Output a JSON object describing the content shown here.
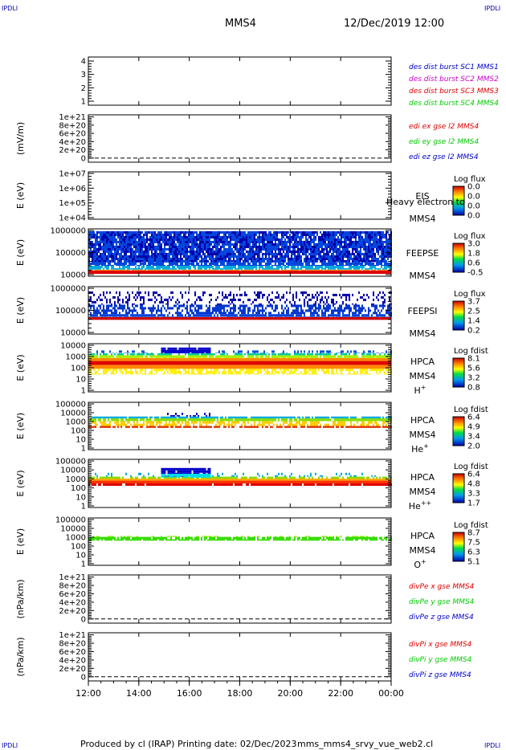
{
  "header": {
    "corner_label": "IPDLI",
    "spacecraft": "MMS4",
    "datetime": "12/Dec/2019 12:00"
  },
  "footer": {
    "produced_by": "Produced by cl (IRAP)",
    "printing_date": "Printing date: 02/Dec/2023",
    "script_name": "mms_mms4_srvy_vue_web2.cl"
  },
  "time_axis": {
    "ticks": [
      "12:00",
      "14:00",
      "16:00",
      "18:00",
      "20:00",
      "22:00",
      "00:00"
    ]
  },
  "colors": {
    "blue": "#0000cc",
    "magenta": "#cc00cc",
    "red": "#dd0000",
    "green": "#00cc00"
  },
  "chart_data": [
    {
      "type": "line",
      "panel": "des-dist-burst",
      "yticks": [
        "1",
        "2",
        "3",
        "4"
      ],
      "ylim": [
        0.7,
        4.3
      ],
      "ylabel": "",
      "legend": [
        {
          "text": "des dist burst SC1 MMS1",
          "color": "#0000cc"
        },
        {
          "text": "des dist burst SC2 MMS2",
          "color": "#cc00cc"
        },
        {
          "text": "des dist burst SC3 MMS3",
          "color": "#dd0000"
        },
        {
          "text": "des dist burst SC4 MMS4",
          "color": "#00cc00"
        }
      ],
      "series": []
    },
    {
      "type": "line",
      "panel": "edi-e-gse",
      "ylabel": "(mV/m)",
      "yticks": [
        "0",
        "2e+20",
        "4e+20",
        "6e+20",
        "8e+20",
        "1e+21"
      ],
      "ylim": [
        -1e+20,
        1.05e+21
      ],
      "zero_line": true,
      "legend": [
        {
          "text": "edi ex gse l2 MMS4",
          "color": "#dd0000"
        },
        {
          "text": "edi ey gse l2 MMS4",
          "color": "#00cc00"
        },
        {
          "text": "edi ez gse l2 MMS4",
          "color": "#0000cc"
        }
      ],
      "series": []
    },
    {
      "type": "heatmap",
      "panel": "eis",
      "ylabel": "E (eV)",
      "yticks": [
        "1e+04",
        "1e+05",
        "1e+06",
        "1e+07"
      ],
      "labels": [
        "EIS",
        "MMS4"
      ],
      "overlap_text": "Heavy electron to",
      "colorbar": {
        "title": "Log flux",
        "ticks": [
          "0.0",
          "0.0",
          "0.0",
          "0.0"
        ]
      },
      "bands": []
    },
    {
      "type": "heatmap",
      "panel": "feeps-e",
      "ylabel": "E (eV)",
      "yticks": [
        "10000",
        "100000",
        "1000000"
      ],
      "labels": [
        "FEEPSE",
        "MMS4"
      ],
      "colorbar": {
        "title": "Log flux",
        "ticks": [
          "3.0",
          "1.8",
          "0.6",
          "-0.5"
        ]
      },
      "bands": [
        {
          "t_start": 0,
          "t_end": 1,
          "lo": 0.05,
          "hi": 0.12,
          "color": "#dd0000",
          "density": 1.0
        },
        {
          "t_start": 0,
          "t_end": 1,
          "lo": 0.12,
          "hi": 0.14,
          "color": "#ff8800",
          "density": 0.9
        },
        {
          "t_start": 0,
          "t_end": 1,
          "lo": 0.14,
          "hi": 0.22,
          "color": "#00aadd",
          "density": 0.8
        },
        {
          "t_start": 0,
          "t_end": 1,
          "lo": 0.22,
          "hi": 0.95,
          "color": "#0044dd",
          "density": 0.85
        },
        {
          "t_start": 0,
          "t_end": 1,
          "lo": 0.3,
          "hi": 0.95,
          "color": "#0000aa",
          "density": 0.35
        }
      ]
    },
    {
      "type": "heatmap",
      "panel": "feeps-i",
      "ylabel": "E (eV)",
      "yticks": [
        "10000",
        "100000",
        "1000000"
      ],
      "labels": [
        "FEEPSI",
        "MMS4"
      ],
      "colorbar": {
        "title": "Log flux",
        "ticks": [
          "3.7",
          "2.5",
          "1.4",
          "0.2"
        ]
      },
      "bands": [
        {
          "t_start": 0,
          "t_end": 1,
          "lo": 0.3,
          "hi": 0.36,
          "color": "#cc0000",
          "density": 1.0
        },
        {
          "t_start": 0,
          "t_end": 1,
          "lo": 0.36,
          "hi": 0.42,
          "color": "#0044dd",
          "density": 0.9
        },
        {
          "t_start": 0,
          "t_end": 1,
          "lo": 0.42,
          "hi": 0.62,
          "color": "#0033cc",
          "density": 0.55
        },
        {
          "t_start": 0,
          "t_end": 1,
          "lo": 0.62,
          "hi": 0.9,
          "color": "#0000aa",
          "density": 0.3
        }
      ]
    },
    {
      "type": "heatmap",
      "panel": "hpca-h",
      "ylabel": "E (eV)",
      "yticks": [
        "1",
        "10",
        "100",
        "1000",
        "10000"
      ],
      "labels": [
        "HPCA",
        "MMS4",
        "H"
      ],
      "label_sup": "+",
      "colorbar": {
        "title": "Log fdist",
        "ticks": [
          "8.1",
          "5.6",
          "3.2",
          "0.8"
        ]
      },
      "bands": [
        {
          "t_start": 0,
          "t_end": 1,
          "lo": 0.36,
          "hi": 0.48,
          "color": "#ffee00",
          "density": 0.6
        },
        {
          "t_start": 0,
          "t_end": 1,
          "lo": 0.48,
          "hi": 0.56,
          "color": "#ff8800",
          "density": 0.95
        },
        {
          "t_start": 0,
          "t_end": 1,
          "lo": 0.56,
          "hi": 0.64,
          "color": "#dd0000",
          "density": 1.0
        },
        {
          "t_start": 0,
          "t_end": 1,
          "lo": 0.64,
          "hi": 0.7,
          "color": "#ff8800",
          "density": 0.95
        },
        {
          "t_start": 0,
          "t_end": 1,
          "lo": 0.7,
          "hi": 0.76,
          "color": "#aaee00",
          "density": 0.9
        },
        {
          "t_start": 0,
          "t_end": 1,
          "lo": 0.76,
          "hi": 0.8,
          "color": "#00cc99",
          "density": 0.7
        },
        {
          "t_start": 0,
          "t_end": 1,
          "lo": 0.8,
          "hi": 0.86,
          "color": "#0055dd",
          "density": 0.35
        },
        {
          "t_start": 0.24,
          "t_end": 0.4,
          "lo": 0.8,
          "hi": 0.92,
          "color": "#0000cc",
          "density": 0.9
        }
      ]
    },
    {
      "type": "heatmap",
      "panel": "hpca-he",
      "ylabel": "E (eV)",
      "yticks": [
        "1",
        "10",
        "100",
        "1000",
        "10000",
        "100000"
      ],
      "labels": [
        "HPCA",
        "MMS4",
        "He"
      ],
      "label_sup": "+",
      "colorbar": {
        "title": "Log fdist",
        "ticks": [
          "6.4",
          "4.9",
          "3.4",
          "2.0"
        ]
      },
      "bands": [
        {
          "t_start": 0,
          "t_end": 1,
          "lo": 0.46,
          "hi": 0.5,
          "color": "#dd3300",
          "density": 0.75
        },
        {
          "t_start": 0,
          "t_end": 1,
          "lo": 0.5,
          "hi": 0.6,
          "color": "#ffcc00",
          "density": 0.55
        },
        {
          "t_start": 0,
          "t_end": 1,
          "lo": 0.6,
          "hi": 0.66,
          "color": "#88dd00",
          "density": 0.9
        },
        {
          "t_start": 0,
          "t_end": 1,
          "lo": 0.66,
          "hi": 0.7,
          "color": "#00aadd",
          "density": 0.9
        },
        {
          "t_start": 0.26,
          "t_end": 0.4,
          "lo": 0.7,
          "hi": 0.78,
          "color": "#0000cc",
          "density": 0.35
        }
      ]
    },
    {
      "type": "heatmap",
      "panel": "hpca-hepp",
      "ylabel": "E (eV)",
      "yticks": [
        "1",
        "10",
        "100",
        "1000",
        "10000",
        "100000"
      ],
      "labels": [
        "HPCA",
        "MMS4",
        "He"
      ],
      "label_sup": "++",
      "colorbar": {
        "title": "Log fdist",
        "ticks": [
          "6.4",
          "4.8",
          "3.3",
          "1.7"
        ]
      },
      "bands": [
        {
          "t_start": 0,
          "t_end": 1,
          "lo": 0.45,
          "hi": 0.5,
          "color": "#dd0000",
          "density": 0.9
        },
        {
          "t_start": 0,
          "t_end": 1,
          "lo": 0.5,
          "hi": 0.56,
          "color": "#ff3300",
          "density": 1.0
        },
        {
          "t_start": 0,
          "t_end": 1,
          "lo": 0.56,
          "hi": 0.6,
          "color": "#ffaa00",
          "density": 0.95
        },
        {
          "t_start": 0,
          "t_end": 1,
          "lo": 0.6,
          "hi": 0.64,
          "color": "#88dd00",
          "density": 0.7
        },
        {
          "t_start": 0,
          "t_end": 1,
          "lo": 0.64,
          "hi": 0.72,
          "color": "#00aadd",
          "density": 0.15
        },
        {
          "t_start": 0.24,
          "t_end": 0.4,
          "lo": 0.64,
          "hi": 0.82,
          "color": "#0000cc",
          "density": 0.9
        },
        {
          "t_start": 0.24,
          "t_end": 0.4,
          "lo": 0.62,
          "hi": 0.7,
          "color": "#00ddee",
          "density": 0.9
        }
      ]
    },
    {
      "type": "heatmap",
      "panel": "hpca-o",
      "ylabel": "E (eV)",
      "yticks": [
        "1",
        "10",
        "100",
        "1000",
        "10000",
        "100000"
      ],
      "labels": [
        "HPCA",
        "MMS4",
        "O"
      ],
      "label_sup": "+",
      "colorbar": {
        "title": "Log fdist",
        "ticks": [
          "8.7",
          "7.5",
          "6.3",
          "5.1"
        ]
      },
      "bands": [
        {
          "t_start": 0,
          "t_end": 1,
          "lo": 0.52,
          "hi": 0.6,
          "color": "#33dd00",
          "density": 0.8
        },
        {
          "t_start": 0,
          "t_end": 1,
          "lo": 0.6,
          "hi": 0.62,
          "color": "#88ee00",
          "density": 0.4
        }
      ]
    },
    {
      "type": "line",
      "panel": "divpe",
      "ylabel": "(nPa/km)",
      "yticks": [
        "0",
        "2e+20",
        "4e+20",
        "6e+20",
        "8e+20",
        "1e+21"
      ],
      "ylim": [
        -1e+20,
        1.05e+21
      ],
      "zero_line": true,
      "legend": [
        {
          "text": "divPe x gse MMS4",
          "color": "#dd0000"
        },
        {
          "text": "divPe y gse MMS4",
          "color": "#00cc00"
        },
        {
          "text": "divPe z gse MMS4",
          "color": "#0000cc"
        }
      ],
      "series": []
    },
    {
      "type": "line",
      "panel": "divpi",
      "ylabel": "(nPa/km)",
      "yticks": [
        "0",
        "2e+20",
        "4e+20",
        "6e+20",
        "8e+20",
        "1e+21"
      ],
      "ylim": [
        -1e+20,
        1.05e+21
      ],
      "zero_line": true,
      "legend": [
        {
          "text": "divPi x gse MMS4",
          "color": "#dd0000"
        },
        {
          "text": "divPi y gse MMS4",
          "color": "#00cc00"
        },
        {
          "text": "divPi z gse MMS4",
          "color": "#0000cc"
        }
      ],
      "series": []
    }
  ]
}
